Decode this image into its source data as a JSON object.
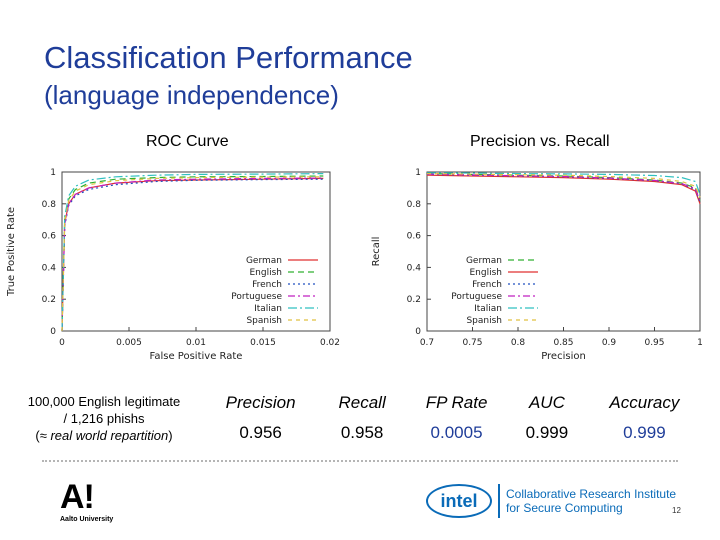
{
  "slide": {
    "title_line1": "Classification Performance",
    "title_line2": "(language independence)",
    "page_number": "12"
  },
  "description": {
    "line1": "100,000 English legitimate",
    "line2": "/ 1,216 phishs",
    "line3_prefix": "(",
    "line3_italic": "≈ real world repartition",
    "line3_suffix": ")"
  },
  "metrics": {
    "headers": [
      "Precision",
      "Recall",
      "FP Rate",
      "AUC",
      "Accuracy"
    ],
    "values": [
      "0.956",
      "0.958",
      "0.0005",
      "0.999",
      "0.999"
    ]
  },
  "logos": {
    "aalto_mark": "A!",
    "aalto_text": "Aalto University",
    "intel_mark": "intel",
    "intel_line1": "Collaborative Research Institute",
    "intel_line2": "for Secure Computing"
  },
  "colors": {
    "title": "#1f3d99",
    "highlight": "#1f3d99",
    "german": "#e03030",
    "english": "#30b030",
    "french": "#2050c0",
    "portuguese": "#c020c0",
    "italian": "#30c0c0",
    "spanish": "#e0c040"
  },
  "chart_data": [
    {
      "type": "line",
      "title": "ROC Curve",
      "xlabel": "False Positive Rate",
      "ylabel": "True Positive Rate",
      "xlim": [
        0,
        0.02
      ],
      "ylim": [
        0,
        1
      ],
      "xticks": [
        "0",
        "0.005",
        "0.01",
        "0.015",
        "0.02"
      ],
      "yticks": [
        "0",
        "0.2",
        "0.4",
        "0.6",
        "0.8",
        "1"
      ],
      "legend_position": "bottom-right",
      "series": [
        {
          "name": "German",
          "color": "#e03030",
          "dash": "solid",
          "x": [
            0,
            0.0002,
            0.0005,
            0.001,
            0.002,
            0.004,
            0.007,
            0.01,
            0.015,
            0.0195
          ],
          "y": [
            0,
            0.68,
            0.8,
            0.86,
            0.9,
            0.93,
            0.945,
            0.95,
            0.955,
            0.96
          ]
        },
        {
          "name": "English",
          "color": "#30b030",
          "dash": "6,4",
          "x": [
            0,
            0.0002,
            0.0005,
            0.001,
            0.002,
            0.004,
            0.007,
            0.01,
            0.015,
            0.0195
          ],
          "y": [
            0,
            0.7,
            0.83,
            0.89,
            0.93,
            0.955,
            0.965,
            0.97,
            0.972,
            0.975
          ]
        },
        {
          "name": "French",
          "color": "#2050c0",
          "dash": "2,3",
          "x": [
            0,
            0.0002,
            0.0005,
            0.001,
            0.002,
            0.004,
            0.007,
            0.01,
            0.015,
            0.0195
          ],
          "y": [
            0,
            0.66,
            0.79,
            0.85,
            0.89,
            0.92,
            0.94,
            0.948,
            0.952,
            0.955
          ]
        },
        {
          "name": "Portuguese",
          "color": "#c020c0",
          "dash": "7,3,2,3",
          "x": [
            0,
            0.0002,
            0.0005,
            0.001,
            0.002,
            0.004,
            0.007,
            0.01,
            0.015,
            0.0195
          ],
          "y": [
            0,
            0.67,
            0.8,
            0.86,
            0.9,
            0.93,
            0.95,
            0.955,
            0.96,
            0.962
          ]
        },
        {
          "name": "Italian",
          "color": "#30c0c0",
          "dash": "9,3,2,3",
          "x": [
            0,
            0.0002,
            0.0005,
            0.001,
            0.002,
            0.004,
            0.007,
            0.01,
            0.015,
            0.0195
          ],
          "y": [
            0,
            0.72,
            0.85,
            0.91,
            0.95,
            0.97,
            0.98,
            0.985,
            0.987,
            0.99
          ]
        },
        {
          "name": "Spanish",
          "color": "#e0c040",
          "dash": "4,4",
          "x": [
            0,
            0.0002,
            0.0005,
            0.001,
            0.002,
            0.004,
            0.007,
            0.01,
            0.015,
            0.0195
          ],
          "y": [
            0,
            0.69,
            0.82,
            0.88,
            0.92,
            0.945,
            0.96,
            0.965,
            0.968,
            0.97
          ]
        }
      ]
    },
    {
      "type": "line",
      "title": "Precision vs. Recall",
      "xlabel": "Precision",
      "ylabel": "Recall",
      "xlim": [
        0.7,
        1
      ],
      "ylim": [
        0,
        1
      ],
      "xticks": [
        "0.7",
        "0.75",
        "0.8",
        "0.85",
        "0.9",
        "0.95",
        "1"
      ],
      "yticks": [
        "0",
        "0.2",
        "0.4",
        "0.6",
        "0.8",
        "1"
      ],
      "legend_position": "bottom-right",
      "series": [
        {
          "name": "German",
          "color": "#30b030",
          "dash": "6,4",
          "x": [
            0.7,
            0.75,
            0.8,
            0.85,
            0.9,
            0.95,
            0.98,
            0.995,
            1.0
          ],
          "y": [
            0.99,
            0.985,
            0.98,
            0.975,
            0.965,
            0.95,
            0.93,
            0.9,
            0.82
          ]
        },
        {
          "name": "English",
          "color": "#e03030",
          "dash": "solid",
          "x": [
            0.7,
            0.75,
            0.8,
            0.85,
            0.9,
            0.95,
            0.98,
            0.995,
            1.0
          ],
          "y": [
            0.98,
            0.975,
            0.97,
            0.965,
            0.955,
            0.94,
            0.92,
            0.88,
            0.8
          ]
        },
        {
          "name": "French",
          "color": "#2050c0",
          "dash": "2,3",
          "x": [
            0.7,
            0.75,
            0.8,
            0.85,
            0.9,
            0.95,
            0.98,
            0.995,
            1.0
          ],
          "y": [
            0.985,
            0.98,
            0.975,
            0.97,
            0.96,
            0.945,
            0.925,
            0.89,
            0.81
          ]
        },
        {
          "name": "Portuguese",
          "color": "#c020c0",
          "dash": "7,3,2,3",
          "x": [
            0.7,
            0.75,
            0.8,
            0.85,
            0.9,
            0.95,
            0.98,
            0.995,
            1.0
          ],
          "y": [
            0.987,
            0.982,
            0.977,
            0.972,
            0.962,
            0.947,
            0.927,
            0.895,
            0.815
          ]
        },
        {
          "name": "Italian",
          "color": "#30c0c0",
          "dash": "9,3,2,3",
          "x": [
            0.7,
            0.75,
            0.8,
            0.85,
            0.9,
            0.95,
            0.98,
            0.995,
            1.0
          ],
          "y": [
            0.995,
            0.993,
            0.99,
            0.988,
            0.985,
            0.978,
            0.965,
            0.94,
            0.86
          ]
        },
        {
          "name": "Spanish",
          "color": "#e0c040",
          "dash": "4,4",
          "x": [
            0.7,
            0.75,
            0.8,
            0.85,
            0.9,
            0.95,
            0.98,
            0.995,
            1.0
          ],
          "y": [
            0.99,
            0.987,
            0.983,
            0.98,
            0.972,
            0.96,
            0.94,
            0.91,
            0.84
          ]
        }
      ]
    }
  ]
}
